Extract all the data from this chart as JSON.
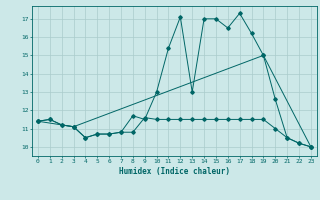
{
  "bg_color": "#cce8e8",
  "grid_color": "#aacccc",
  "line_color": "#006666",
  "xlabel": "Humidex (Indice chaleur)",
  "xlim": [
    -0.5,
    23.5
  ],
  "ylim": [
    9.5,
    17.7
  ],
  "xticks": [
    0,
    1,
    2,
    3,
    4,
    5,
    6,
    7,
    8,
    9,
    10,
    11,
    12,
    13,
    14,
    15,
    16,
    17,
    18,
    19,
    20,
    21,
    22,
    23
  ],
  "yticks": [
    10,
    11,
    12,
    13,
    14,
    15,
    16,
    17
  ],
  "line1_x": [
    0,
    1,
    2,
    3,
    4,
    5,
    6,
    7,
    8,
    9,
    10,
    11,
    12,
    13,
    14,
    15,
    16,
    17,
    18,
    19,
    20,
    21,
    22,
    23
  ],
  "line1_y": [
    11.4,
    11.5,
    11.2,
    11.1,
    10.5,
    10.7,
    10.7,
    10.8,
    10.8,
    11.6,
    11.5,
    11.5,
    11.5,
    11.5,
    11.5,
    11.5,
    11.5,
    11.5,
    11.5,
    11.5,
    11.0,
    10.5,
    10.2,
    10.0
  ],
  "line2_x": [
    0,
    1,
    2,
    3,
    4,
    5,
    6,
    7,
    8,
    9,
    10,
    11,
    12,
    13,
    14,
    15,
    16,
    17,
    18,
    19,
    20,
    21,
    22,
    23
  ],
  "line2_y": [
    11.4,
    11.5,
    11.2,
    11.1,
    10.5,
    10.7,
    10.7,
    10.8,
    11.7,
    11.5,
    13.0,
    15.4,
    17.1,
    13.0,
    17.0,
    17.0,
    16.5,
    17.3,
    16.2,
    15.0,
    12.6,
    10.5,
    10.2,
    10.0
  ],
  "line3_x": [
    0,
    3,
    19,
    23
  ],
  "line3_y": [
    11.4,
    11.1,
    15.0,
    10.0
  ]
}
